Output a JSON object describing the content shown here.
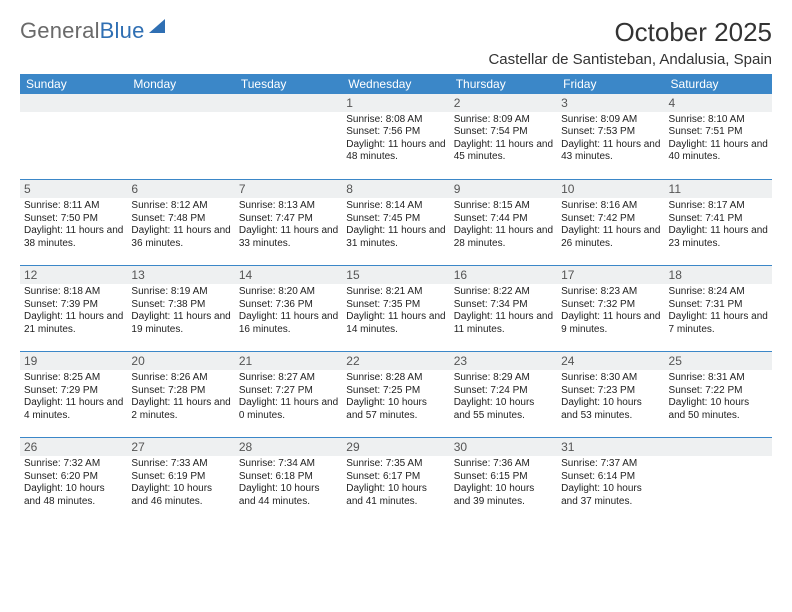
{
  "brand": {
    "part1": "General",
    "part2": "Blue"
  },
  "title": "October 2025",
  "location": "Castellar de Santisteban, Andalusia, Spain",
  "colors": {
    "header_bg": "#3b87c8",
    "header_fg": "#ffffff",
    "daynum_bg": "#eef0f1",
    "row_border": "#3b87c8",
    "brand_gray": "#6a6a6a",
    "brand_blue": "#2f6fb3"
  },
  "fonts": {
    "title_size_pt": 20,
    "location_size_pt": 12,
    "header_size_pt": 9,
    "cell_size_pt": 8
  },
  "weekdays": [
    "Sunday",
    "Monday",
    "Tuesday",
    "Wednesday",
    "Thursday",
    "Friday",
    "Saturday"
  ],
  "first_weekday_index": 3,
  "days": [
    {
      "n": 1,
      "sunrise": "8:08 AM",
      "sunset": "7:56 PM",
      "daylight": "11 hours and 48 minutes."
    },
    {
      "n": 2,
      "sunrise": "8:09 AM",
      "sunset": "7:54 PM",
      "daylight": "11 hours and 45 minutes."
    },
    {
      "n": 3,
      "sunrise": "8:09 AM",
      "sunset": "7:53 PM",
      "daylight": "11 hours and 43 minutes."
    },
    {
      "n": 4,
      "sunrise": "8:10 AM",
      "sunset": "7:51 PM",
      "daylight": "11 hours and 40 minutes."
    },
    {
      "n": 5,
      "sunrise": "8:11 AM",
      "sunset": "7:50 PM",
      "daylight": "11 hours and 38 minutes."
    },
    {
      "n": 6,
      "sunrise": "8:12 AM",
      "sunset": "7:48 PM",
      "daylight": "11 hours and 36 minutes."
    },
    {
      "n": 7,
      "sunrise": "8:13 AM",
      "sunset": "7:47 PM",
      "daylight": "11 hours and 33 minutes."
    },
    {
      "n": 8,
      "sunrise": "8:14 AM",
      "sunset": "7:45 PM",
      "daylight": "11 hours and 31 minutes."
    },
    {
      "n": 9,
      "sunrise": "8:15 AM",
      "sunset": "7:44 PM",
      "daylight": "11 hours and 28 minutes."
    },
    {
      "n": 10,
      "sunrise": "8:16 AM",
      "sunset": "7:42 PM",
      "daylight": "11 hours and 26 minutes."
    },
    {
      "n": 11,
      "sunrise": "8:17 AM",
      "sunset": "7:41 PM",
      "daylight": "11 hours and 23 minutes."
    },
    {
      "n": 12,
      "sunrise": "8:18 AM",
      "sunset": "7:39 PM",
      "daylight": "11 hours and 21 minutes."
    },
    {
      "n": 13,
      "sunrise": "8:19 AM",
      "sunset": "7:38 PM",
      "daylight": "11 hours and 19 minutes."
    },
    {
      "n": 14,
      "sunrise": "8:20 AM",
      "sunset": "7:36 PM",
      "daylight": "11 hours and 16 minutes."
    },
    {
      "n": 15,
      "sunrise": "8:21 AM",
      "sunset": "7:35 PM",
      "daylight": "11 hours and 14 minutes."
    },
    {
      "n": 16,
      "sunrise": "8:22 AM",
      "sunset": "7:34 PM",
      "daylight": "11 hours and 11 minutes."
    },
    {
      "n": 17,
      "sunrise": "8:23 AM",
      "sunset": "7:32 PM",
      "daylight": "11 hours and 9 minutes."
    },
    {
      "n": 18,
      "sunrise": "8:24 AM",
      "sunset": "7:31 PM",
      "daylight": "11 hours and 7 minutes."
    },
    {
      "n": 19,
      "sunrise": "8:25 AM",
      "sunset": "7:29 PM",
      "daylight": "11 hours and 4 minutes."
    },
    {
      "n": 20,
      "sunrise": "8:26 AM",
      "sunset": "7:28 PM",
      "daylight": "11 hours and 2 minutes."
    },
    {
      "n": 21,
      "sunrise": "8:27 AM",
      "sunset": "7:27 PM",
      "daylight": "11 hours and 0 minutes."
    },
    {
      "n": 22,
      "sunrise": "8:28 AM",
      "sunset": "7:25 PM",
      "daylight": "10 hours and 57 minutes."
    },
    {
      "n": 23,
      "sunrise": "8:29 AM",
      "sunset": "7:24 PM",
      "daylight": "10 hours and 55 minutes."
    },
    {
      "n": 24,
      "sunrise": "8:30 AM",
      "sunset": "7:23 PM",
      "daylight": "10 hours and 53 minutes."
    },
    {
      "n": 25,
      "sunrise": "8:31 AM",
      "sunset": "7:22 PM",
      "daylight": "10 hours and 50 minutes."
    },
    {
      "n": 26,
      "sunrise": "7:32 AM",
      "sunset": "6:20 PM",
      "daylight": "10 hours and 48 minutes."
    },
    {
      "n": 27,
      "sunrise": "7:33 AM",
      "sunset": "6:19 PM",
      "daylight": "10 hours and 46 minutes."
    },
    {
      "n": 28,
      "sunrise": "7:34 AM",
      "sunset": "6:18 PM",
      "daylight": "10 hours and 44 minutes."
    },
    {
      "n": 29,
      "sunrise": "7:35 AM",
      "sunset": "6:17 PM",
      "daylight": "10 hours and 41 minutes."
    },
    {
      "n": 30,
      "sunrise": "7:36 AM",
      "sunset": "6:15 PM",
      "daylight": "10 hours and 39 minutes."
    },
    {
      "n": 31,
      "sunrise": "7:37 AM",
      "sunset": "6:14 PM",
      "daylight": "10 hours and 37 minutes."
    }
  ],
  "labels": {
    "sunrise": "Sunrise:",
    "sunset": "Sunset:",
    "daylight": "Daylight:"
  }
}
